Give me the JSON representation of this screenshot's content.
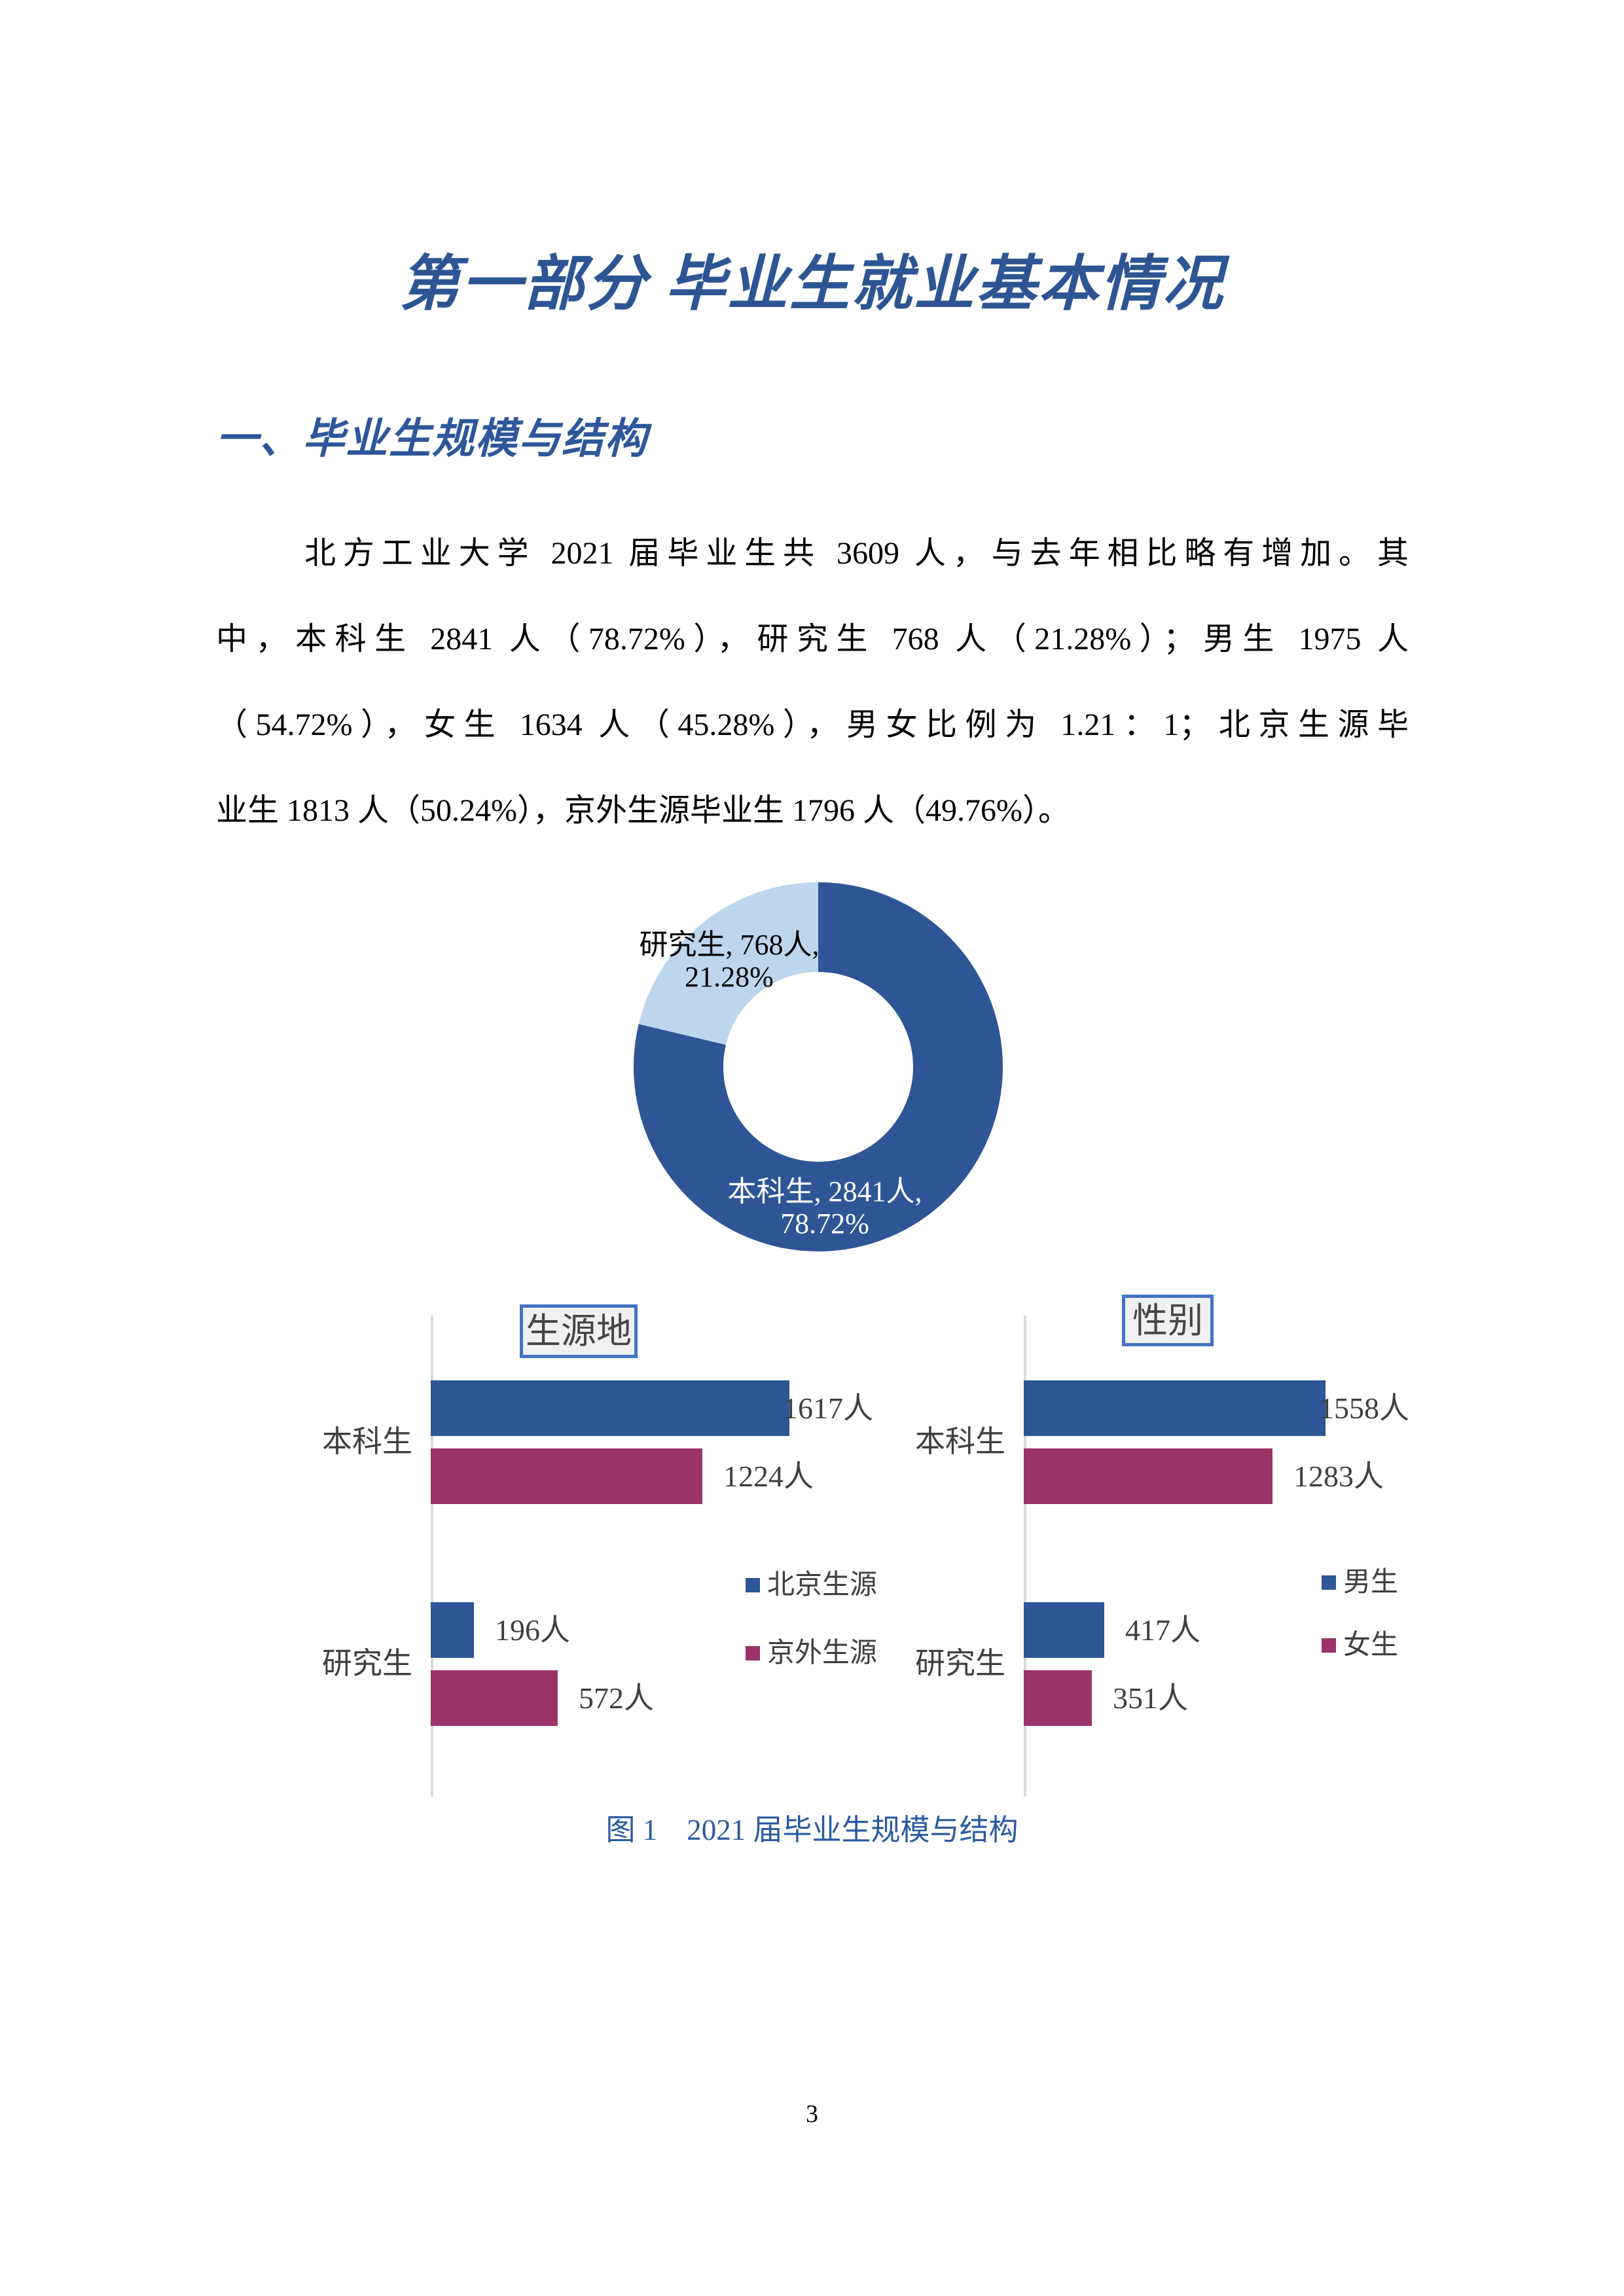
{
  "document": {
    "title": "第一部分 毕业生就业基本情况",
    "section_heading": "一、毕业生规模与结构",
    "paragraph_lines": [
      "北方工业大学 2021 届毕业生共 3609 人，与去年相比略有增加。其",
      "中，本科生 2841 人（78.72%），研究生 768 人（21.28%）；男生 1975 人",
      "（54.72%），女生 1634 人（45.28%），男女比例为 1.21：1；北京生源毕",
      "业生 1813 人（50.24%），京外生源毕业生 1796 人（49.76%）。"
    ],
    "figure_caption": "图 1　2021 届毕业生规模与结构",
    "page_number": "3"
  },
  "colors": {
    "title_blue": "#2D5593",
    "heading_blue": "#2E579B",
    "caption_blue": "#2C5AA0",
    "chart_blue": "#2E5596",
    "chart_light_blue": "#BDD6EE",
    "chart_maroon": "#9B3367",
    "box_border_blue": "#4472C4",
    "title_box_fill": "#F0F0F0",
    "title_box_text": "#454545",
    "axis_gray": "#D9D9D9",
    "label_gray": "#3F3F3F",
    "donut_label_dark": "#000000",
    "donut_label_light": "#FFFFFF"
  },
  "chart_data": [
    {
      "type": "pie",
      "subtype": "donut",
      "title": "",
      "hole_ratio": 0.51,
      "start_angle_deg": 0,
      "direction": "clockwise",
      "slices": [
        {
          "label": "本科生",
          "value": 2841,
          "pct": 78.72,
          "unit": "人",
          "color_key": "chart_blue",
          "data_label": "本科生, 2841人,\n78.72%"
        },
        {
          "label": "研究生",
          "value": 768,
          "pct": 21.28,
          "unit": "人",
          "color_key": "chart_light_blue",
          "data_label": "研究生, 768人,\n21.28%"
        }
      ]
    },
    {
      "type": "bar",
      "orientation": "horizontal",
      "title": "生源地",
      "unit": "人",
      "categories": [
        "本科生",
        "研究生"
      ],
      "series": [
        {
          "name": "北京生源",
          "color_key": "chart_blue",
          "values": [
            1617,
            196
          ],
          "data_labels": [
            "1617人",
            "196人"
          ]
        },
        {
          "name": "京外生源",
          "color_key": "chart_maroon",
          "values": [
            1224,
            572
          ],
          "data_labels": [
            "1224人",
            "572人"
          ]
        }
      ],
      "legend_position": "right-middle",
      "gridlines": false
    },
    {
      "type": "bar",
      "orientation": "horizontal",
      "title": "性别",
      "unit": "人",
      "categories": [
        "本科生",
        "研究生"
      ],
      "series": [
        {
          "name": "男生",
          "color_key": "chart_blue",
          "values": [
            1558,
            417
          ],
          "data_labels": [
            "1558人",
            "417人"
          ]
        },
        {
          "name": "女生",
          "color_key": "chart_maroon",
          "values": [
            1283,
            351
          ],
          "data_labels": [
            "1283人",
            "351人"
          ]
        }
      ],
      "legend_position": "right-middle",
      "gridlines": false
    }
  ]
}
